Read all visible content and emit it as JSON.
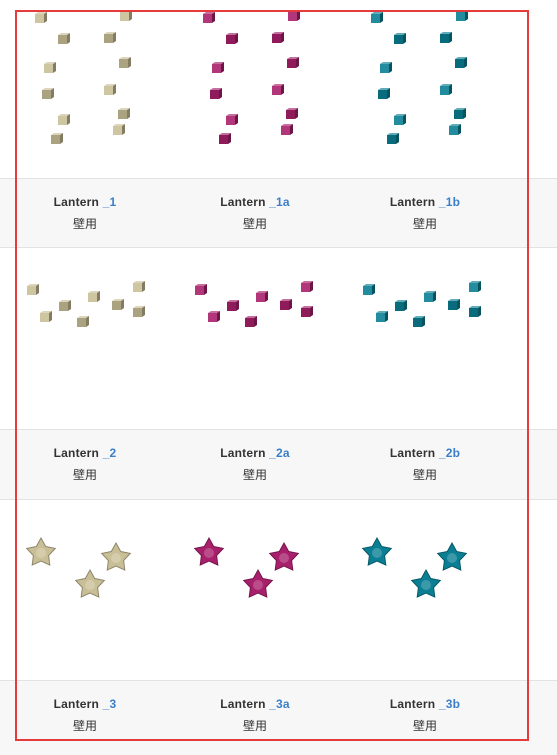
{
  "colors": {
    "beige": "#c9bf96",
    "magenta": "#a8206b",
    "teal": "#0a7f93",
    "link": "#3b7fc9",
    "frame": "#e53b3b"
  },
  "rows": [
    {
      "items": [
        {
          "name": "Lantern",
          "suffix": "_1",
          "category": "壁用",
          "color": "beige"
        },
        {
          "name": "Lantern",
          "suffix": "_1a",
          "category": "壁用",
          "color": "magenta"
        },
        {
          "name": "Lantern",
          "suffix": "_1b",
          "category": "壁用",
          "color": "teal"
        }
      ]
    },
    {
      "items": [
        {
          "name": "Lantern",
          "suffix": "_2",
          "category": "壁用",
          "color": "beige"
        },
        {
          "name": "Lantern",
          "suffix": "_2a",
          "category": "壁用",
          "color": "magenta"
        },
        {
          "name": "Lantern",
          "suffix": "_2b",
          "category": "壁用",
          "color": "teal"
        }
      ]
    },
    {
      "items": [
        {
          "name": "Lantern",
          "suffix": "_3",
          "category": "壁用",
          "color": "beige"
        },
        {
          "name": "Lantern",
          "suffix": "_3a",
          "category": "壁用",
          "color": "magenta"
        },
        {
          "name": "Lantern",
          "suffix": "_3b",
          "category": "壁用",
          "color": "teal"
        }
      ]
    }
  ]
}
